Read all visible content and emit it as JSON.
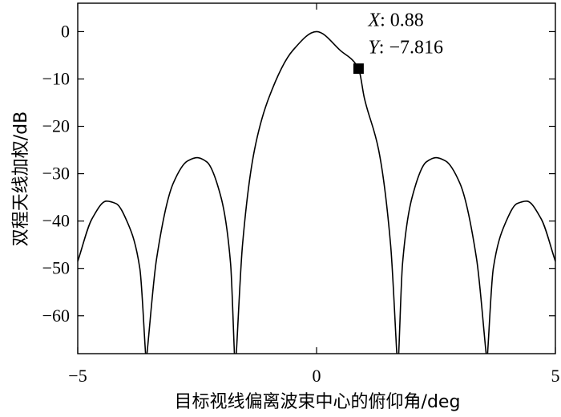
{
  "chart_data": {
    "type": "line",
    "xlabel": "目标视线偏离波束中心的俯仰角/deg",
    "ylabel": "双程天线加权/dB",
    "xlim": [
      -5,
      5
    ],
    "ylim": [
      -68,
      6
    ],
    "xticks": [
      -5,
      0,
      5
    ],
    "yticks": [
      0,
      -10,
      -20,
      -30,
      -40,
      -50,
      -60
    ],
    "xtick_labels": [
      "−5",
      "0",
      "5"
    ],
    "ytick_labels": [
      "0",
      "−10",
      "−20",
      "−30",
      "−40",
      "−50",
      "−60"
    ],
    "grid": false,
    "legend": "none",
    "series": [
      {
        "line_color": "#000000",
        "lobes": [
          {
            "x": [
              -5.0,
              -4.7,
              -4.4,
              -4.2,
              -3.95,
              -3.7,
              -3.58
            ],
            "y": [
              -48.5,
              -39.5,
              -35.8,
              -36.3,
              -40.5,
              -50,
              -68
            ]
          },
          {
            "x": [
              -3.55,
              -3.35,
              -3.0,
              -2.7,
              -2.5,
              -2.3,
              -2.0,
              -1.8,
              -1.72
            ],
            "y": [
              -68,
              -48,
              -32,
              -27.3,
              -26.6,
              -27.5,
              -35,
              -49,
              -68
            ]
          },
          {
            "x": [
              -1.68,
              -1.55,
              -1.3,
              -1.0,
              -0.5,
              0.0,
              0.5,
              0.88,
              1.0,
              1.3,
              1.55,
              1.68
            ],
            "y": [
              -68,
              -45,
              -25,
              -14,
              -4,
              0,
              -4,
              -7.816,
              -14,
              -25,
              -45,
              -68
            ]
          },
          {
            "x": [
              1.72,
              1.8,
              2.0,
              2.3,
              2.5,
              2.7,
              3.0,
              3.35,
              3.55
            ],
            "y": [
              -68,
              -49,
              -35,
              -27.5,
              -26.6,
              -27.3,
              -32,
              -48,
              -68
            ]
          },
          {
            "x": [
              3.58,
              3.7,
              3.95,
              4.2,
              4.4,
              4.7,
              5.0
            ],
            "y": [
              -68,
              -50,
              -40.5,
              -36.3,
              -35.8,
              -39.5,
              -48.5
            ]
          }
        ]
      }
    ],
    "annotation": {
      "x": 0.88,
      "y": -7.816,
      "x_label": "X",
      "x_value": ": 0.88",
      "y_label": "Y",
      "y_value": ": −7.816"
    }
  }
}
